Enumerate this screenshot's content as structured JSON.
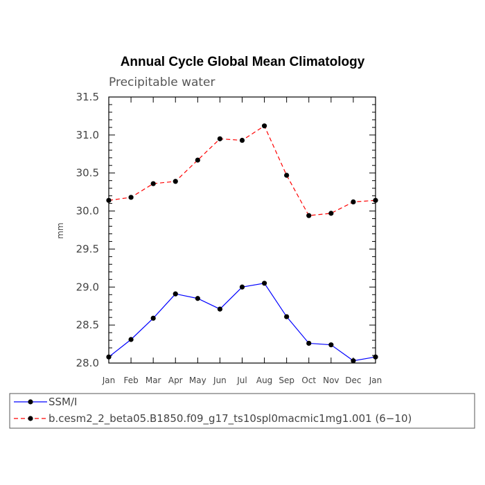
{
  "chart_data": {
    "type": "line",
    "title": "Annual Cycle Global Mean Climatology",
    "subtitle": "Precipitable water",
    "xlabel": "",
    "ylabel": "mm",
    "categories": [
      "Jan",
      "Feb",
      "Mar",
      "Apr",
      "May",
      "Jun",
      "Jul",
      "Aug",
      "Sep",
      "Oct",
      "Nov",
      "Dec",
      "Jan"
    ],
    "ylim": [
      28.0,
      31.5
    ],
    "yticks": [
      "28.0",
      "28.5",
      "29.0",
      "29.5",
      "30.0",
      "30.5",
      "31.0",
      "31.5"
    ],
    "series": [
      {
        "name": "SSM/I",
        "color": "#0000ff",
        "dash": "solid",
        "values": [
          28.08,
          28.31,
          28.59,
          28.91,
          28.85,
          28.71,
          29.0,
          29.05,
          28.61,
          28.26,
          28.24,
          28.03,
          28.08
        ]
      },
      {
        "name": "b.cesm2_2_beta05.B1850.f09_g17_ts10spl0macmic1mg1.001 (6−10)",
        "color": "#ff0000",
        "dash": "dashed",
        "values": [
          30.14,
          30.18,
          30.36,
          30.39,
          30.67,
          30.95,
          30.93,
          31.12,
          30.47,
          29.94,
          29.97,
          30.12,
          30.14
        ]
      }
    ],
    "grid": false,
    "legend_position": "bottom"
  }
}
